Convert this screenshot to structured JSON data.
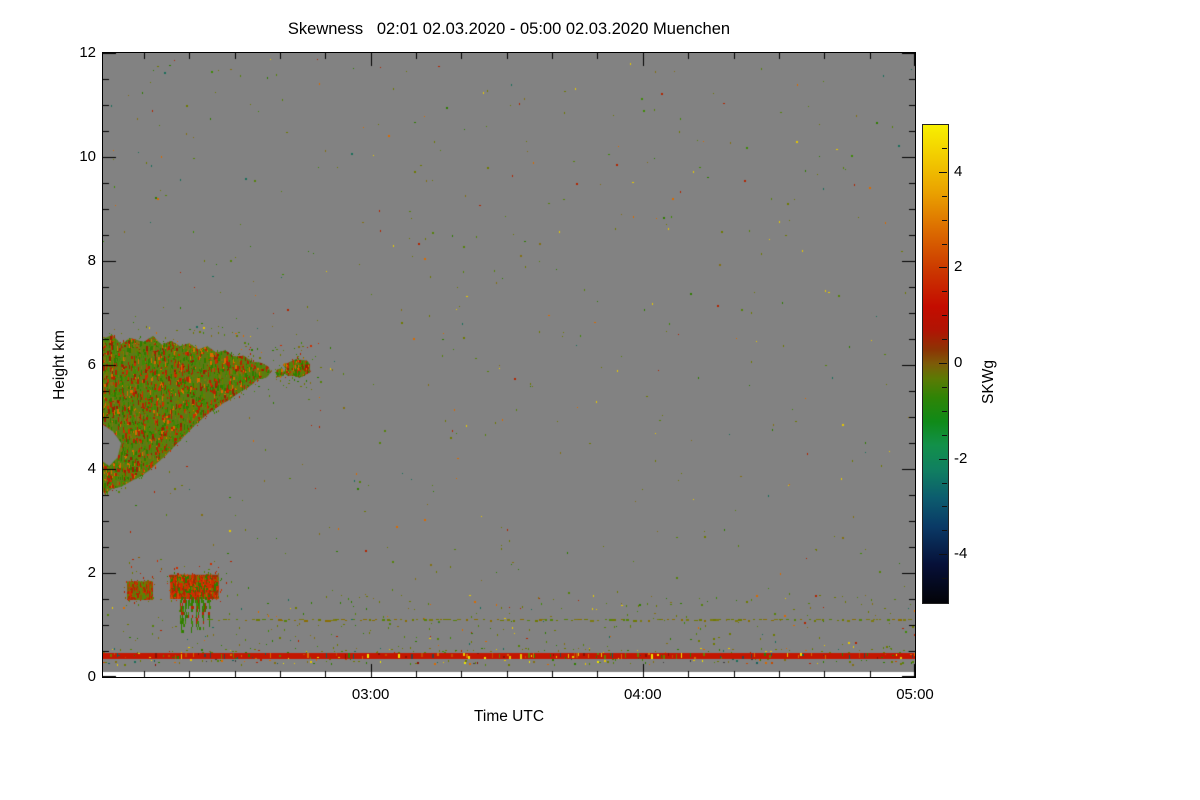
{
  "page": {
    "background": "#ffffff"
  },
  "chart_data": {
    "type": "heatmap",
    "title": "Skewness   02:01 02.03.2020 - 05:00 02.03.2020 Muenchen",
    "xlabel": "Time UTC",
    "ylabel": "Height km",
    "seed": 1337,
    "x_axis": {
      "start_time": "02:01",
      "end_time": "05:00",
      "total_minutes": 179,
      "minor_step_minutes": 10,
      "ticks": [
        {
          "label": "03:00",
          "t": 59
        },
        {
          "label": "04:00",
          "t": 119
        },
        {
          "label": "05:00",
          "t": 179
        }
      ]
    },
    "y_axis": {
      "range": [
        0,
        12
      ],
      "minor_step_km": 0.5,
      "ticks": [
        {
          "label": "12",
          "km": 12
        },
        {
          "label": "10",
          "km": 10
        },
        {
          "label": "8",
          "km": 8
        },
        {
          "label": "6",
          "km": 6
        },
        {
          "label": "4",
          "km": 4
        },
        {
          "label": "2",
          "km": 2
        },
        {
          "label": "0",
          "km": 0
        }
      ]
    },
    "colorbar": {
      "label": "SKWg",
      "range": [
        -5,
        5
      ],
      "minor_step": 0.5,
      "ticks": [
        {
          "label": "4",
          "v": 4
        },
        {
          "label": "2",
          "v": 2
        },
        {
          "label": "0",
          "v": 0
        },
        {
          "label": "-2",
          "v": -2
        },
        {
          "label": "-4",
          "v": -4
        }
      ],
      "stops": [
        [
          0,
          "#030308"
        ],
        [
          8,
          "#061038"
        ],
        [
          16,
          "#0a3a66"
        ],
        [
          22,
          "#0c5c6e"
        ],
        [
          28,
          "#108060"
        ],
        [
          33,
          "#12904a"
        ],
        [
          38,
          "#108a18"
        ],
        [
          43,
          "#2f8406"
        ],
        [
          47,
          "#5c7a04"
        ],
        [
          50,
          "#7c5c08"
        ],
        [
          53,
          "#8c3404"
        ],
        [
          57,
          "#b01404"
        ],
        [
          62,
          "#c40c00"
        ],
        [
          70,
          "#cc3a00"
        ],
        [
          78,
          "#dc6c00"
        ],
        [
          86,
          "#eaa200"
        ],
        [
          93,
          "#f2ca00"
        ],
        [
          100,
          "#f8f000"
        ]
      ]
    },
    "field": {
      "background": "#828282",
      "no_data_below_km": 0.096
    },
    "palettes": {
      "cloud": [
        "#2f7d00",
        "#3f8a05",
        "#56830a",
        "#6e7a00",
        "#b32400",
        "#cc2e00",
        "#992000",
        "#837012",
        "#d96a00",
        "#3f8a05",
        "#2f7d00",
        "#6e7a00",
        "#b32400",
        "#56830a"
      ],
      "cloud_a": [
        "#b32400",
        "#cc2e00",
        "#8a5a00",
        "#6e7a00",
        "#56830a",
        "#b32400"
      ],
      "cloud_b": [
        "#cc2e00",
        "#b32400",
        "#d94400",
        "#6e7a00",
        "#2f7d00",
        "#cc2e00"
      ],
      "streaks": [
        "#2f7d00",
        "#3f8a05",
        "#b32400",
        "#2f7d00"
      ],
      "scatter": [
        "#6e7a00",
        "#56830a",
        "#2f7d00",
        "#837012",
        "#b32400",
        "#d96a00",
        "#6e7a00",
        "#56830a",
        "#3f8a05",
        "#6e7a00",
        "#1a6e5a",
        "#e6c800",
        "#56830a",
        "#2f7d00",
        "#837012",
        "#6e7a00"
      ],
      "dotted": [
        "#6e7a00",
        "#7c7a10",
        "#56830a",
        "#8a6e00"
      ],
      "red_line_speckles": [
        "#e6c800",
        "#6e7a00",
        "#2f7d00",
        "#d96a00",
        "#8a1000",
        "#f0e400",
        "#404040",
        "#14605a",
        "#c44a00"
      ]
    },
    "features": {
      "main_cloud": {
        "polygon": [
          [
            0,
            6.5
          ],
          [
            2,
            6.58
          ],
          [
            4,
            6.4
          ],
          [
            6,
            6.52
          ],
          [
            9,
            6.44
          ],
          [
            11,
            6.56
          ],
          [
            13,
            6.38
          ],
          [
            15,
            6.46
          ],
          [
            17,
            6.36
          ],
          [
            19,
            6.42
          ],
          [
            21,
            6.3
          ],
          [
            23,
            6.36
          ],
          [
            25,
            6.24
          ],
          [
            27,
            6.28
          ],
          [
            29,
            6.16
          ],
          [
            31,
            6.18
          ],
          [
            33,
            6.06
          ],
          [
            35,
            6.04
          ],
          [
            36.5,
            5.96
          ],
          [
            37,
            5.86
          ],
          [
            36,
            5.76
          ],
          [
            34,
            5.72
          ],
          [
            32.5,
            5.6
          ],
          [
            31,
            5.52
          ],
          [
            29.5,
            5.44
          ],
          [
            28,
            5.34
          ],
          [
            26,
            5.24
          ],
          [
            24,
            5.12
          ],
          [
            22,
            4.98
          ],
          [
            20,
            4.82
          ],
          [
            18,
            4.64
          ],
          [
            16,
            4.46
          ],
          [
            14,
            4.28
          ],
          [
            12,
            4.12
          ],
          [
            10,
            3.96
          ],
          [
            8,
            3.84
          ],
          [
            6,
            3.76
          ],
          [
            4,
            3.66
          ],
          [
            2,
            3.62
          ],
          [
            0.5,
            3.52
          ],
          [
            0,
            3.56
          ]
        ],
        "base": "#5c7a14",
        "n": 5200
      },
      "notch": [
        [
          0,
          4.85
        ],
        [
          2.2,
          4.72
        ],
        [
          4.0,
          4.5
        ],
        [
          3.2,
          4.22
        ],
        [
          1.4,
          4.06
        ],
        [
          0,
          4.14
        ]
      ],
      "blobs": [
        {
          "center": [
            42.8,
            5.93
          ],
          "rt": 3.0,
          "rkm": 0.17,
          "n": 260
        },
        {
          "center": [
            39.0,
            5.85
          ],
          "rt": 0.9,
          "rkm": 0.09,
          "n": 40
        }
      ],
      "small_cloud_a": {
        "t": [
          5.3,
          11.0
        ],
        "km": [
          1.48,
          1.84
        ],
        "n": 300
      },
      "small_cloud_b": {
        "t": [
          14.8,
          25.5
        ],
        "km": [
          1.5,
          1.97
        ],
        "n": 460
      },
      "streaks_b": {
        "t": [
          16.5,
          23.5
        ],
        "km_top": 1.52,
        "km_bot": [
          0.8,
          1.45
        ],
        "n": 26
      },
      "dotted_line": {
        "t": [
          23,
          179
        ],
        "km": 1.1
      },
      "red_line": {
        "km": [
          0.355,
          0.455
        ],
        "base": "#c41600",
        "coverage": 0.5
      },
      "below_row": {
        "km": [
          0.24,
          0.345
        ],
        "density": 0.45
      },
      "above_row": {
        "km": [
          0.46,
          0.55
        ],
        "density": 0.12
      },
      "scatter_global": {
        "n": 540,
        "t": [
          0,
          179
        ],
        "km": [
          0.5,
          11.9
        ]
      },
      "scatter_band": {
        "n": 260,
        "t": [
          0,
          179
        ],
        "km": [
          0.45,
          1.62
        ]
      },
      "scatter_fringe": {
        "n": 70,
        "t": [
          30,
          48
        ],
        "km": [
          5.5,
          6.45
        ]
      },
      "scatter_cloudtop": {
        "n": 30,
        "t": [
          0,
          37
        ],
        "km": [
          6.5,
          6.75
        ]
      },
      "scatter_midlow": {
        "n": 30,
        "t": [
          5,
          30
        ],
        "km": [
          1.8,
          2.3
        ]
      }
    }
  }
}
